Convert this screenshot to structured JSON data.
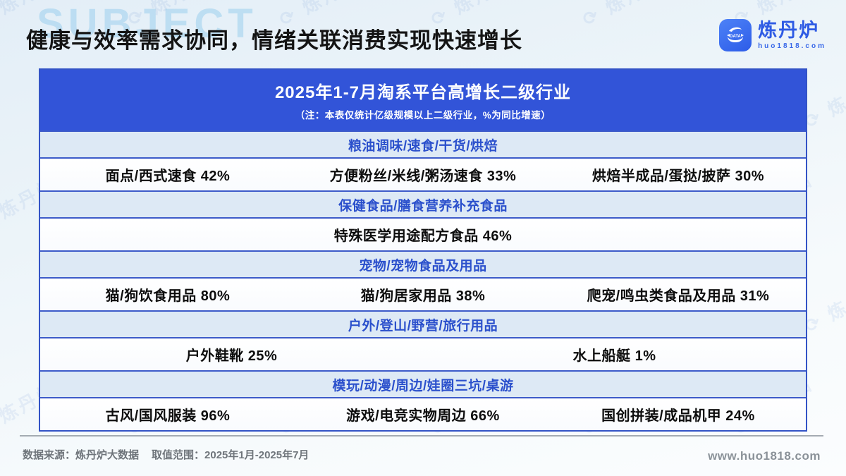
{
  "page": {
    "title": "健康与效率需求协同，情绪关联消费实现快速增长",
    "background_watermark_text": "SUBJECT",
    "accent_color": "#3254d8"
  },
  "brand": {
    "name": "炼丹炉",
    "domain": "huo1818.com",
    "icon": "alchemy-furnace-data-icon",
    "icon_label": "DATA",
    "color": "#2e5be4"
  },
  "table": {
    "title": "2025年1-7月淘系平台高增长二级行业",
    "subtitle": "（注：本表仅统计亿级规模以上二级行业，%为同比增速）",
    "header_bg": "#3254d8",
    "band_bg": "#dde9f5",
    "band_text_color": "#2b50cc",
    "border_color": "#3353c6",
    "sections": [
      {
        "category": "粮油调味/速食/干货/烘焙",
        "items": [
          "面点/西式速食 42%",
          "方便粉丝/米线/粥汤速食 33%",
          "烘焙半成品/蛋挞/披萨 30%"
        ]
      },
      {
        "category": "保健食品/膳食营养补充食品",
        "items": [
          "特殊医学用途配方食品 46%"
        ]
      },
      {
        "category": "宠物/宠物食品及用品",
        "items": [
          "猫/狗饮食用品 80%",
          "猫/狗居家用品 38%",
          "爬宠/鸣虫类食品及用品 31%"
        ]
      },
      {
        "category": "户外/登山/野营/旅行用品",
        "items": [
          "户外鞋靴 25%",
          "水上船艇 1%"
        ]
      },
      {
        "category": "模玩/动漫/周边/娃圈三坑/桌游",
        "items": [
          "古风/国风服装 96%",
          "游戏/电竞实物周边 66%",
          "国创拼装/成品机甲 24%"
        ]
      }
    ]
  },
  "chart_data": {
    "type": "table",
    "title": "2025年1-7月淘系平台高增长二级行业",
    "note": "（注：本表仅统计亿级规模以上二级行业，%为同比增速）",
    "value_unit": "%同比增速",
    "groups": [
      {
        "category": "粮油调味/速食/干货/烘焙",
        "entries": [
          {
            "name": "面点/西式速食",
            "yoy_growth_pct": 42
          },
          {
            "name": "方便粉丝/米线/粥汤速食",
            "yoy_growth_pct": 33
          },
          {
            "name": "烘焙半成品/蛋挞/披萨",
            "yoy_growth_pct": 30
          }
        ]
      },
      {
        "category": "保健食品/膳食营养补充食品",
        "entries": [
          {
            "name": "特殊医学用途配方食品",
            "yoy_growth_pct": 46
          }
        ]
      },
      {
        "category": "宠物/宠物食品及用品",
        "entries": [
          {
            "name": "猫/狗饮食用品",
            "yoy_growth_pct": 80
          },
          {
            "name": "猫/狗居家用品",
            "yoy_growth_pct": 38
          },
          {
            "name": "爬宠/鸣虫类食品及用品",
            "yoy_growth_pct": 31
          }
        ]
      },
      {
        "category": "户外/登山/野营/旅行用品",
        "entries": [
          {
            "name": "户外鞋靴",
            "yoy_growth_pct": 25
          },
          {
            "name": "水上船艇",
            "yoy_growth_pct": 1
          }
        ]
      },
      {
        "category": "模玩/动漫/周边/娃圈三坑/桌游",
        "entries": [
          {
            "name": "古风/国风服装",
            "yoy_growth_pct": 96
          },
          {
            "name": "游戏/电竞实物周边",
            "yoy_growth_pct": 66
          },
          {
            "name": "国创拼装/成品机甲",
            "yoy_growth_pct": 24
          }
        ]
      }
    ]
  },
  "footer": {
    "source": "数据来源：炼丹炉大数据",
    "range": "取值范围：2025年1月-2025年7月",
    "website": "www.huo1818.com"
  }
}
